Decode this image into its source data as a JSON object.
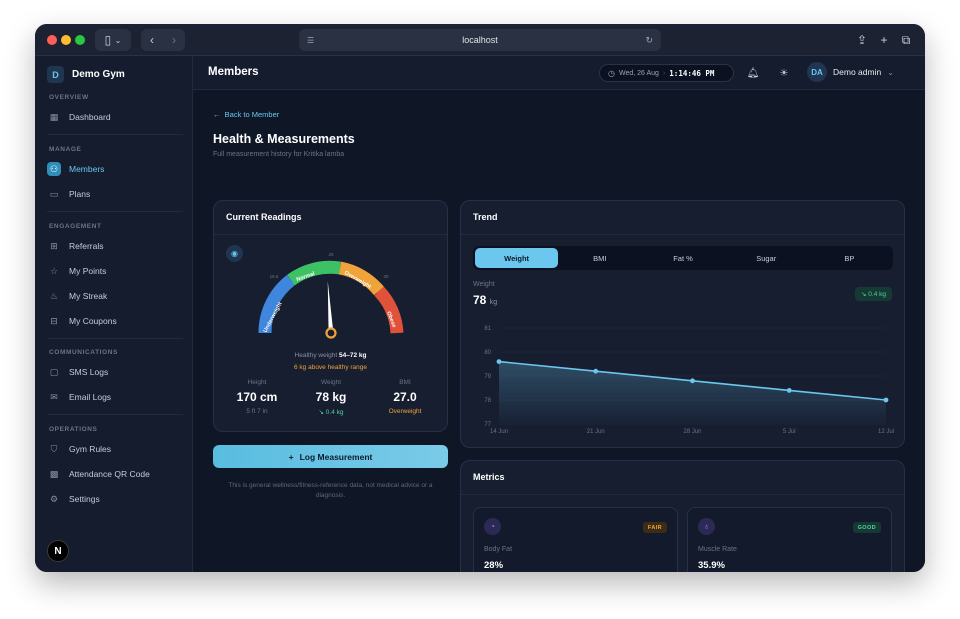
{
  "browser": {
    "url": "localhost",
    "traffic_lights": [
      "#ff5f57",
      "#febc2e",
      "#28c840"
    ]
  },
  "sidebar": {
    "brand_initial": "D",
    "brand_name": "Demo Gym",
    "sections": [
      {
        "label": "OVERVIEW",
        "items": [
          {
            "label": "Dashboard",
            "icon": "grid-icon",
            "active": false
          }
        ]
      },
      {
        "label": "MANAGE",
        "items": [
          {
            "label": "Members",
            "icon": "users-icon",
            "active": true
          },
          {
            "label": "Plans",
            "icon": "card-icon",
            "active": false
          }
        ]
      },
      {
        "label": "ENGAGEMENT",
        "items": [
          {
            "label": "Referrals",
            "icon": "gift-icon",
            "active": false
          },
          {
            "label": "My Points",
            "icon": "star-icon",
            "active": false
          },
          {
            "label": "My Streak",
            "icon": "flame-icon",
            "active": false
          },
          {
            "label": "My Coupons",
            "icon": "ticket-icon",
            "active": false
          }
        ]
      },
      {
        "label": "COMMUNICATIONS",
        "items": [
          {
            "label": "SMS Logs",
            "icon": "message-icon",
            "active": false
          },
          {
            "label": "Email Logs",
            "icon": "mail-icon",
            "active": false
          }
        ]
      },
      {
        "label": "OPERATIONS",
        "items": [
          {
            "label": "Gym Rules",
            "icon": "shield-icon",
            "active": false
          },
          {
            "label": "Attendance QR Code",
            "icon": "qr-icon",
            "active": false
          },
          {
            "label": "Settings",
            "icon": "gear-icon",
            "active": false
          }
        ]
      }
    ],
    "footer_logo": "N"
  },
  "header": {
    "title": "Members",
    "date": "Wed, 26 Aug",
    "time": "1:14:46 PM",
    "user_initials": "DA",
    "user_name": "Demo admin"
  },
  "page": {
    "back_label": "Back to Member",
    "title": "Health & Measurements",
    "subtitle": "Full measurement history for Kritika lamba"
  },
  "current_readings": {
    "title": "Current Readings",
    "gauge": {
      "segments": [
        "Underweight",
        "Normal",
        "Overweight",
        "Obese"
      ],
      "ticks": [
        "18.5",
        "25",
        "30"
      ],
      "bmi_value": 27.0,
      "bmi_min": 15,
      "bmi_max": 40
    },
    "healthy_prefix": "Healthy weight ",
    "healthy_range": "54–72 kg",
    "above_note": "6 kg above healthy range",
    "stats": [
      {
        "label": "Height",
        "value": "170 cm",
        "sub": "5 ft 7 in",
        "sub_color": "#6b7487"
      },
      {
        "label": "Weight",
        "value": "78 kg",
        "sub": "↘ 0.4 kg",
        "sub_color": "#4fd1a5"
      },
      {
        "label": "BMI",
        "value": "27.0",
        "sub": "Overweight",
        "sub_color": "#f0a33a"
      }
    ]
  },
  "log_button": "Log Measurement",
  "disclaimer": "This is general wellness/fitness-reference data, not medical advice or a diagnosis.",
  "trend": {
    "title": "Trend",
    "tabs": [
      "Weight",
      "BMI",
      "Fat %",
      "Sugar",
      "BP"
    ],
    "active_tab": 0,
    "metric_label": "Weight",
    "metric_value": "78",
    "metric_unit": "kg",
    "delta": "↘ 0.4 kg"
  },
  "chart_data": {
    "type": "area",
    "x": [
      "14 Jun",
      "21 Jun",
      "28 Jun",
      "5 Jul",
      "12 Jul"
    ],
    "values": [
      79.6,
      79.2,
      78.8,
      78.4,
      78.0
    ],
    "y_ticks": [
      "81",
      "80",
      "79",
      "78",
      "77"
    ],
    "ylim": [
      77,
      81
    ],
    "line_color": "#6cc7ef"
  },
  "metrics": {
    "title": "Metrics",
    "items": [
      {
        "label": "Body Fat",
        "value": "28%",
        "badge": "FAIR",
        "badge_bg": "#3b2c17",
        "badge_color": "#f0a33a",
        "icon": "pie-icon",
        "marker": 0.58
      },
      {
        "label": "Muscle Rate",
        "value": "35.9%",
        "badge": "GOOD",
        "badge_bg": "#163a33",
        "badge_color": "#4fd1a5",
        "icon": "muscle-icon",
        "marker": 0.48
      }
    ]
  }
}
